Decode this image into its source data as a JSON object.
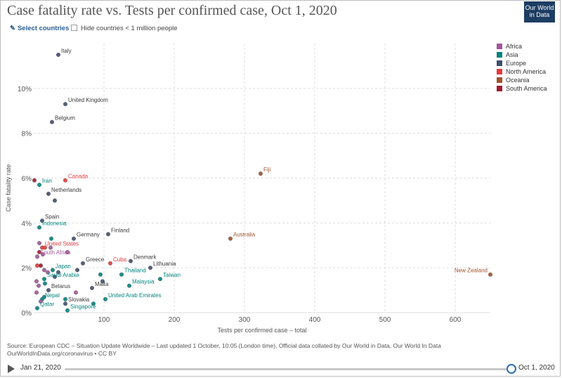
{
  "header": {
    "title": "Case fatality rate vs. Tests per confirmed case, Oct 1, 2020",
    "logo_line1": "Our World",
    "logo_line2": "in Data"
  },
  "controls": {
    "select_countries": "Select countries",
    "hide_small": "Hide countries < 1 million people"
  },
  "colors": {
    "Africa": "#a2569a",
    "Asia": "#00847e",
    "Europe": "#3f4f6f",
    "North America": "#e63b3b",
    "Oceania": "#a0522d",
    "South America": "#a01c2e"
  },
  "legend": [
    "Africa",
    "Asia",
    "Europe",
    "North America",
    "Oceania",
    "South America"
  ],
  "source": {
    "line1": "Source: European CDC – Situation Update Worldwide – Last updated 1 October, 10:05 (London time), Official data collated by Our World in Data, Our World In Data",
    "line2": "OurWorldInData.org/coronavirus • CC BY"
  },
  "timeline": {
    "start": "Jan 21, 2020",
    "end": "Oct 1, 2020",
    "position": 1.0
  },
  "chart_data": {
    "type": "scatter",
    "title": "Case fatality rate vs. Tests per confirmed case, Oct 1, 2020",
    "xlabel": "Tests per confirmed case – total",
    "ylabel": "Case fatality rate",
    "xlim": [
      0,
      650
    ],
    "ylim": [
      0,
      12
    ],
    "x_ticks": [
      0,
      100,
      200,
      300,
      400,
      500,
      600
    ],
    "y_ticks": [
      0,
      2,
      4,
      6,
      8,
      10
    ],
    "x_tick_labels": [
      "0",
      "100",
      "200",
      "300",
      "400",
      "500",
      "600"
    ],
    "y_tick_labels": [
      "0%",
      "2%",
      "4%",
      "6%",
      "8%",
      "10%"
    ],
    "grid": true,
    "legend_position": "right",
    "points": [
      {
        "label": "Italy",
        "x": 35,
        "y": 11.5,
        "group": "Europe"
      },
      {
        "label": "United Kingdom",
        "x": 45,
        "y": 9.3,
        "group": "Europe"
      },
      {
        "label": "Belgium",
        "x": 26,
        "y": 8.5,
        "group": "Europe"
      },
      {
        "label": "Fiji",
        "x": 323,
        "y": 6.2,
        "group": "Oceania"
      },
      {
        "label": "Canada",
        "x": 45,
        "y": 5.9,
        "group": "North America"
      },
      {
        "label": "Iran",
        "x": 8,
        "y": 5.7,
        "group": "Asia"
      },
      {
        "label": "Netherlands",
        "x": 21,
        "y": 5.3,
        "group": "Europe"
      },
      {
        "label": "Spain",
        "x": 12,
        "y": 4.1,
        "group": "Europe"
      },
      {
        "label": "Indonesia",
        "x": 8,
        "y": 3.8,
        "group": "Asia"
      },
      {
        "label": "Finland",
        "x": 106,
        "y": 3.5,
        "group": "Europe"
      },
      {
        "label": "Germany",
        "x": 57,
        "y": 3.3,
        "group": "Europe"
      },
      {
        "label": "Australia",
        "x": 280,
        "y": 3.3,
        "group": "Oceania"
      },
      {
        "label": "United States",
        "x": 12,
        "y": 2.9,
        "group": "North America"
      },
      {
        "label": "South Africa",
        "x": 5,
        "y": 2.5,
        "group": "Africa"
      },
      {
        "label": "Denmark",
        "x": 138,
        "y": 2.3,
        "group": "Europe"
      },
      {
        "label": "Cuba",
        "x": 109,
        "y": 2.2,
        "group": "North America"
      },
      {
        "label": "Greece",
        "x": 70,
        "y": 2.2,
        "group": "Europe"
      },
      {
        "label": "Lithuania",
        "x": 166,
        "y": 2.0,
        "group": "Europe"
      },
      {
        "label": "Japan",
        "x": 27,
        "y": 1.9,
        "group": "Asia"
      },
      {
        "label": "Thailand",
        "x": 125,
        "y": 1.7,
        "group": "Asia"
      },
      {
        "label": "New Zealand",
        "x": 650,
        "y": 1.7,
        "group": "Oceania"
      },
      {
        "label": "Saudi Arabia",
        "x": 15,
        "y": 1.5,
        "group": "Asia"
      },
      {
        "label": "Taiwan",
        "x": 180,
        "y": 1.5,
        "group": "Asia"
      },
      {
        "label": "Malaysia",
        "x": 136,
        "y": 1.2,
        "group": "Asia"
      },
      {
        "label": "Malta",
        "x": 83,
        "y": 1.1,
        "group": "Europe"
      },
      {
        "label": "Belarus",
        "x": 21,
        "y": 1.0,
        "group": "Europe"
      },
      {
        "label": "Nepal",
        "x": 12,
        "y": 0.6,
        "group": "Asia"
      },
      {
        "label": "United Arab Emirates",
        "x": 102,
        "y": 0.6,
        "group": "Asia"
      },
      {
        "label": "Slovakia",
        "x": 45,
        "y": 0.4,
        "group": "Europe"
      },
      {
        "label": "Qatar",
        "x": 5,
        "y": 0.2,
        "group": "Asia"
      },
      {
        "label": "Singapore",
        "x": 48,
        "y": 0.1,
        "group": "Asia"
      },
      {
        "label": "",
        "x": 1,
        "y": 5.9,
        "group": "South America"
      },
      {
        "label": "",
        "x": 30,
        "y": 5.0,
        "group": "Europe"
      },
      {
        "label": "",
        "x": 25,
        "y": 3.3,
        "group": "Asia"
      },
      {
        "label": "",
        "x": 8,
        "y": 3.1,
        "group": "Africa"
      },
      {
        "label": "",
        "x": 16,
        "y": 2.9,
        "group": "North America"
      },
      {
        "label": "",
        "x": 24,
        "y": 2.9,
        "group": "Africa"
      },
      {
        "label": "",
        "x": 8,
        "y": 2.7,
        "group": "South America"
      },
      {
        "label": "",
        "x": 13,
        "y": 2.6,
        "group": "Africa"
      },
      {
        "label": "",
        "x": 48,
        "y": 2.7,
        "group": "Africa"
      },
      {
        "label": "",
        "x": 5,
        "y": 2.1,
        "group": "North America"
      },
      {
        "label": "",
        "x": 10,
        "y": 2.1,
        "group": "South America"
      },
      {
        "label": "",
        "x": 15,
        "y": 1.9,
        "group": "Africa"
      },
      {
        "label": "",
        "x": 20,
        "y": 1.8,
        "group": "Africa"
      },
      {
        "label": "",
        "x": 30,
        "y": 1.6,
        "group": "Europe"
      },
      {
        "label": "",
        "x": 35,
        "y": 1.8,
        "group": "Europe"
      },
      {
        "label": "",
        "x": 62,
        "y": 1.9,
        "group": "Europe"
      },
      {
        "label": "",
        "x": 95,
        "y": 1.7,
        "group": "Asia"
      },
      {
        "label": "",
        "x": 98,
        "y": 1.4,
        "group": "Europe"
      },
      {
        "label": "",
        "x": 4,
        "y": 1.4,
        "group": "Africa"
      },
      {
        "label": "",
        "x": 7,
        "y": 1.2,
        "group": "Africa"
      },
      {
        "label": "",
        "x": 16,
        "y": 1.3,
        "group": "Asia"
      },
      {
        "label": "",
        "x": 4,
        "y": 0.9,
        "group": "Africa"
      },
      {
        "label": "",
        "x": 60,
        "y": 0.9,
        "group": "Africa"
      },
      {
        "label": "",
        "x": 10,
        "y": 0.5,
        "group": "Africa"
      },
      {
        "label": "",
        "x": 15,
        "y": 0.7,
        "group": "Asia"
      },
      {
        "label": "",
        "x": 45,
        "y": 0.6,
        "group": "Asia"
      },
      {
        "label": "",
        "x": 85,
        "y": 0.4,
        "group": "Asia"
      }
    ]
  }
}
